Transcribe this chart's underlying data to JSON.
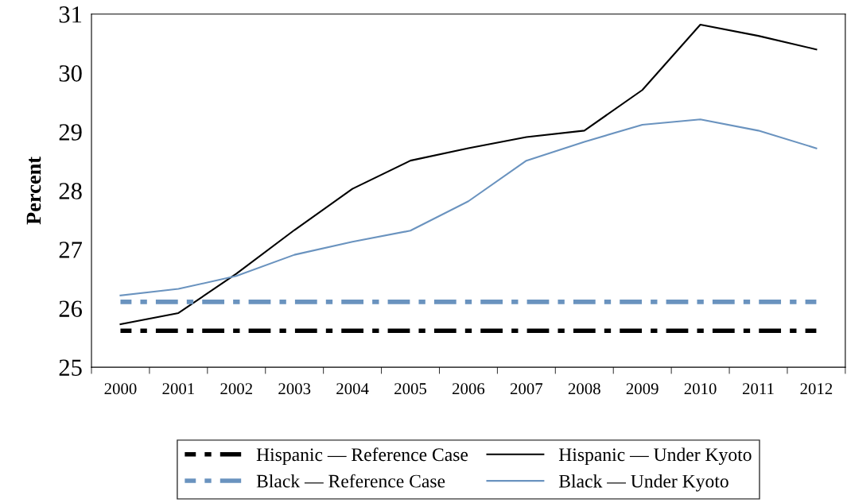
{
  "chart_data": {
    "type": "line",
    "ylabel": "Percent",
    "categories": [
      "2000",
      "2001",
      "2002",
      "2003",
      "2004",
      "2005",
      "2006",
      "2007",
      "2008",
      "2009",
      "2010",
      "2011",
      "2012"
    ],
    "series": [
      {
        "name": "Hispanic — Reference Case",
        "color": "#000000",
        "line_style": "dashed",
        "values": [
          25.62,
          25.62,
          25.62,
          25.62,
          25.62,
          25.62,
          25.62,
          25.62,
          25.62,
          25.62,
          25.62,
          25.62,
          25.62
        ]
      },
      {
        "name": "Hispanic — Under Kyoto",
        "color": "#000000",
        "line_style": "solid",
        "values": [
          25.73,
          25.92,
          26.59,
          27.33,
          28.03,
          28.51,
          28.72,
          28.91,
          29.02,
          29.71,
          30.82,
          30.63,
          30.4
        ]
      },
      {
        "name": "Black — Reference Case",
        "color": "#6a93bf",
        "line_style": "dashed",
        "values": [
          26.11,
          26.11,
          26.11,
          26.11,
          26.11,
          26.11,
          26.11,
          26.11,
          26.11,
          26.11,
          26.11,
          26.11,
          26.11
        ]
      },
      {
        "name": "Black — Under Kyoto",
        "color": "#6a93bf",
        "line_style": "solid",
        "values": [
          26.22,
          26.33,
          26.55,
          26.91,
          27.13,
          27.32,
          27.82,
          28.51,
          28.83,
          29.12,
          29.21,
          29.02,
          28.72
        ]
      }
    ],
    "ylim": [
      25,
      31
    ],
    "yticks": [
      25,
      26,
      27,
      28,
      29,
      30,
      31
    ],
    "grid": false,
    "legend": "bottom",
    "marker": "none"
  }
}
